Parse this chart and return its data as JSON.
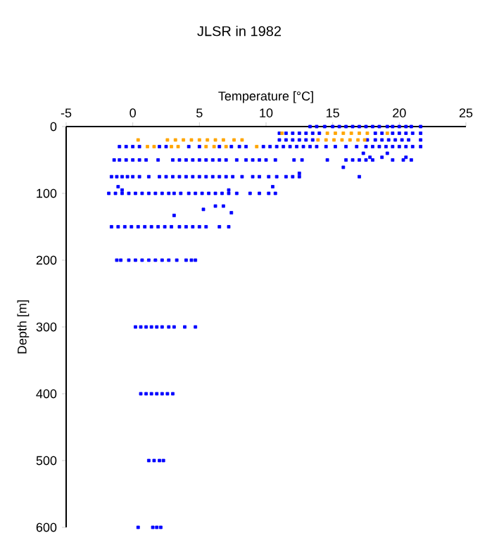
{
  "chart_data": {
    "type": "scatter",
    "title": "JLSR in 1982",
    "xlabel": "Temperature [°C]",
    "ylabel": "Depth [m]",
    "xlim": [
      -5,
      25
    ],
    "xticks": [
      -5,
      0,
      5,
      10,
      15,
      20,
      25
    ],
    "ylim": [
      600,
      0
    ],
    "yticks": [
      0,
      100,
      200,
      300,
      400,
      500,
      600
    ],
    "marker": "square",
    "series": [
      {
        "color": "#0000ff",
        "x": [
          13.3,
          13.8,
          14.4,
          15,
          15.5,
          16,
          16.5,
          17,
          17.5,
          18,
          18.5,
          19.1,
          19.5,
          20,
          20.5,
          20.9,
          21.6
        ],
        "values": [
          0,
          0,
          0,
          0,
          0,
          0,
          0,
          0,
          0,
          0,
          0,
          0,
          0,
          0,
          0,
          0,
          0
        ]
      },
      {
        "color": "#0000ff",
        "x": [
          11,
          11.5,
          12,
          12.5,
          13,
          13.5,
          14,
          18.2,
          18.7,
          19.5,
          20,
          20.5,
          21,
          21.6
        ],
        "values": [
          10,
          10,
          10,
          10,
          10,
          10,
          10,
          10,
          10,
          10,
          10,
          10,
          10,
          10
        ]
      },
      {
        "color": "#0000ff",
        "x": [
          11,
          11.5,
          12,
          12.5,
          13,
          13.5,
          17.6,
          18.2,
          18.7,
          19.2,
          19.7,
          20.2,
          20.7,
          21.6
        ],
        "values": [
          20,
          20,
          20,
          20,
          20,
          20,
          20,
          20,
          20,
          20,
          20,
          20,
          20,
          20
        ]
      },
      {
        "color": "#0000ff",
        "x": [
          -1,
          -0.5,
          0,
          0.5,
          2,
          2.5,
          4.2,
          5,
          6.5,
          7.4,
          8,
          8.5,
          9.8,
          10.3,
          10.8,
          11.3,
          11.8,
          12.3,
          12.8,
          13.3,
          13.8,
          14.5,
          15.2,
          16,
          16.8,
          17.5,
          18,
          18.5,
          19,
          19.5,
          20,
          20.5,
          21,
          21.6
        ],
        "values": [
          30,
          30,
          30,
          30,
          30,
          30,
          30,
          30,
          30,
          30,
          30,
          30,
          30,
          30,
          30,
          30,
          30,
          30,
          30,
          30,
          30,
          30,
          30,
          30,
          30,
          30,
          30,
          30,
          30,
          30,
          30,
          30,
          30,
          30
        ]
      },
      {
        "color": "#0000ff",
        "x": [
          -1.4,
          -1,
          -0.5,
          0,
          0.5,
          1,
          1.9,
          3,
          3.5,
          4,
          4.5,
          5,
          5.5,
          6,
          6.5,
          7,
          7.8,
          8.5,
          9,
          9.5,
          10,
          10.7,
          12.1,
          12.7,
          14.6,
          16,
          16.5,
          17,
          17.5,
          18,
          19.5,
          20.3,
          20.9
        ],
        "values": [
          50,
          50,
          50,
          50,
          50,
          50,
          50,
          50,
          50,
          50,
          50,
          50,
          50,
          50,
          50,
          50,
          50,
          50,
          50,
          50,
          50,
          50,
          50,
          50,
          50,
          50,
          50,
          50,
          50,
          50,
          50,
          50,
          50
        ]
      },
      {
        "color": "#0000ff",
        "x": [
          -1.6,
          -1.2,
          -0.8,
          -0.4,
          0,
          0.5,
          1.2,
          2,
          2.5,
          3,
          3.5,
          4,
          4.5,
          5,
          5.5,
          6,
          6.5,
          7,
          7.5,
          8.2,
          9,
          9.5,
          10.2,
          10.8,
          11.5,
          12,
          12.5
        ],
        "values": [
          75,
          75,
          75,
          75,
          75,
          75,
          75,
          75,
          75,
          75,
          75,
          75,
          75,
          75,
          75,
          75,
          75,
          75,
          75,
          75,
          75,
          75,
          75,
          75,
          75,
          75,
          75
        ]
      },
      {
        "color": "#0000ff",
        "x": [
          -1.8,
          -1.3,
          -0.8,
          -0.3,
          0.2,
          0.7,
          1.2,
          1.7,
          2.2,
          2.7,
          3.1,
          3.6,
          4.2,
          4.7,
          5.2,
          5.7,
          6.2,
          6.7,
          7.2,
          7.8,
          8.8,
          9.5,
          10.2,
          10.7
        ],
        "values": [
          100,
          100,
          100,
          100,
          100,
          100,
          100,
          100,
          100,
          100,
          100,
          100,
          100,
          100,
          100,
          100,
          100,
          100,
          100,
          100,
          100,
          100,
          100,
          100
        ]
      },
      {
        "color": "#0000ff",
        "x": [
          -1.6,
          -1.1,
          -0.6,
          -0.1,
          0.4,
          0.9,
          1.4,
          1.9,
          2.4,
          2.9,
          3.5,
          4,
          4.5,
          5,
          5.5,
          6.5,
          7.2
        ],
        "values": [
          150,
          150,
          150,
          150,
          150,
          150,
          150,
          150,
          150,
          150,
          150,
          150,
          150,
          150,
          150,
          150,
          150
        ]
      },
      {
        "color": "#0000ff",
        "x": [
          -1.2,
          -0.9,
          -0.3,
          0.2,
          0.7,
          1.2,
          1.7,
          2.2,
          2.7,
          3.3,
          4,
          4.4,
          4.7
        ],
        "values": [
          200,
          200,
          200,
          200,
          200,
          200,
          200,
          200,
          200,
          200,
          200,
          200,
          200
        ]
      },
      {
        "color": "#0000ff",
        "x": [
          0.2,
          0.6,
          1,
          1.4,
          1.8,
          2.2,
          2.7,
          3.1,
          3.9,
          4.7
        ],
        "values": [
          300,
          300,
          300,
          300,
          300,
          300,
          300,
          300,
          300,
          300
        ]
      },
      {
        "color": "#0000ff",
        "x": [
          0.6,
          1,
          1.4,
          1.8,
          2.2,
          2.6,
          3
        ],
        "values": [
          400,
          400,
          400,
          400,
          400,
          400,
          400
        ]
      },
      {
        "color": "#0000ff",
        "x": [
          1.2,
          1.6,
          2,
          2.3
        ],
        "values": [
          500,
          500,
          500,
          500
        ]
      },
      {
        "color": "#0000ff",
        "x": [
          0.4,
          1.5,
          1.8,
          2.1
        ],
        "values": [
          600,
          600,
          600,
          600
        ]
      },
      {
        "color": "#0000ff",
        "x": [
          17.3,
          17.8,
          18.7,
          19.1,
          20.5,
          15.8,
          17,
          12.5,
          10.5,
          -1.1,
          -0.8,
          7.2,
          5.3,
          6.2,
          6.8,
          7.4,
          3.1
        ],
        "values": [
          40,
          46,
          46,
          40,
          46,
          61,
          75,
          70,
          90,
          90,
          95,
          95,
          124,
          119,
          119,
          129,
          133
        ]
      },
      {
        "color": "#ffa500",
        "x": [
          11.2,
          14.6,
          15.2,
          15.8,
          16.4,
          17,
          17.6,
          19.1
        ],
        "values": [
          10,
          10,
          10,
          10,
          10,
          10,
          10,
          10
        ]
      },
      {
        "color": "#ffa500",
        "x": [
          0.4,
          2.6,
          3.2,
          3.8,
          4.4,
          5,
          5.6,
          6.2,
          6.8,
          7.6,
          8.2,
          13.9,
          14.5,
          15.1,
          15.7,
          16.3,
          16.9,
          17.4
        ],
        "values": [
          20,
          20,
          20,
          20,
          20,
          20,
          20,
          20,
          20,
          20,
          20,
          20,
          20,
          20,
          20,
          20,
          20,
          20
        ]
      },
      {
        "color": "#ffa500",
        "x": [
          1.1,
          1.6,
          2.9,
          3.4,
          5.5,
          6.1,
          7,
          9.3
        ],
        "values": [
          30,
          30,
          30,
          30,
          30,
          30,
          30,
          30
        ]
      }
    ]
  }
}
